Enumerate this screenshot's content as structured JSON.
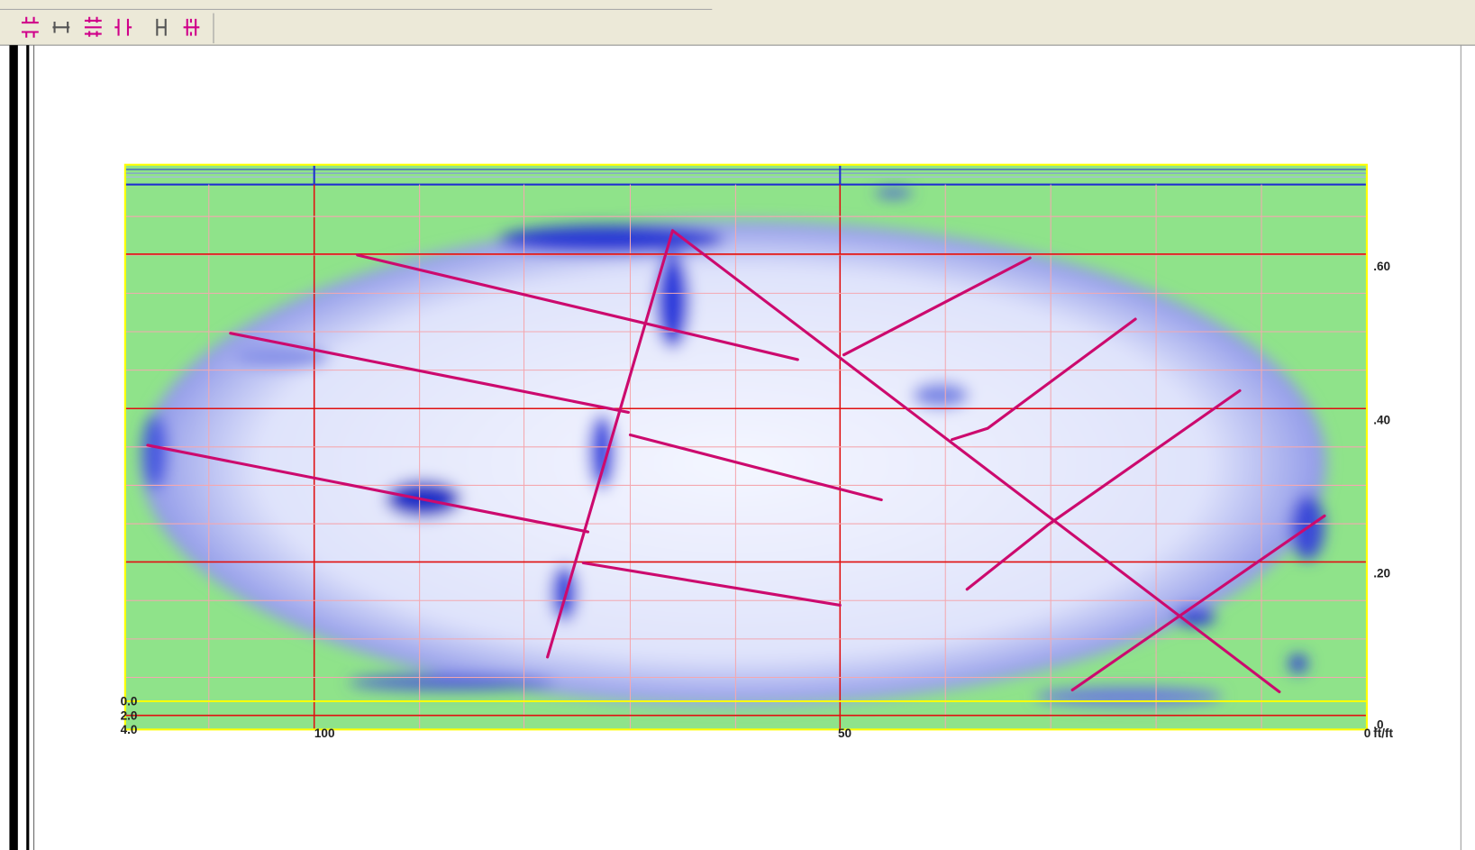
{
  "plot": {
    "x_labels": [
      "100",
      "50",
      "0"
    ],
    "x_unit": "ft/ft",
    "y_labels": [
      ".60",
      ".40",
      ".20",
      ".0"
    ],
    "depth_labels": [
      "0.0",
      "2.0",
      "4.0"
    ]
  }
}
